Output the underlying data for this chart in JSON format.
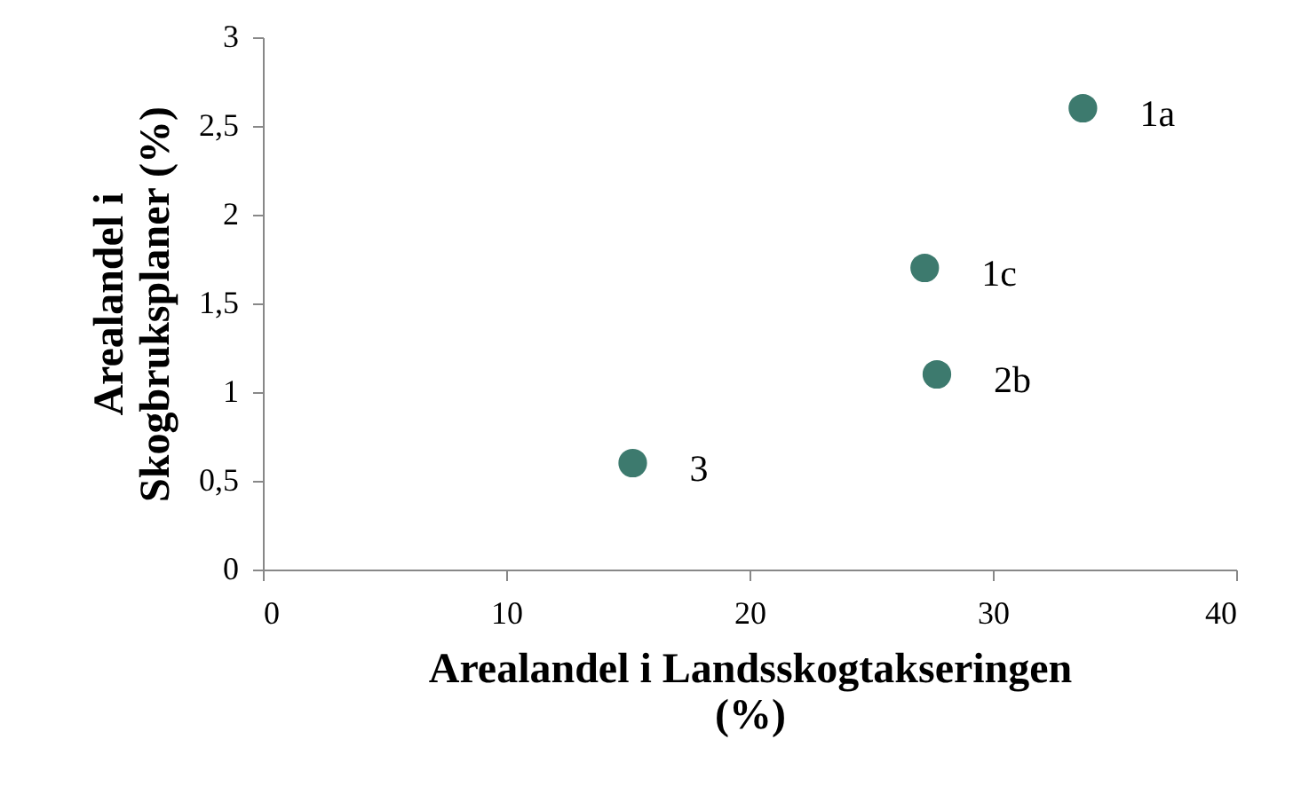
{
  "chart_data": {
    "type": "scatter",
    "xlabel": "Arealandel i Landsskogtakseringen (%)",
    "ylabel": "Arealandel i Skogbruksplaner (%)",
    "x": [
      33.7,
      27.2,
      27.7,
      15.2
    ],
    "series": [
      {
        "color": "#3d7a6e",
        "values": [
          2.6,
          1.7,
          1.1,
          0.6
        ]
      }
    ],
    "annotations": [
      {
        "text": "1a",
        "x": 33.7,
        "y": 2.6
      },
      {
        "text": "1c",
        "x": 27.2,
        "y": 1.7
      },
      {
        "text": "2b",
        "x": 27.7,
        "y": 1.1
      },
      {
        "text": "3",
        "x": 15.2,
        "y": 0.6
      }
    ],
    "xlim": [
      0,
      40
    ],
    "xticks": [
      0,
      10,
      20,
      30,
      40
    ],
    "ylim": [
      0,
      3
    ],
    "yticks": [
      0,
      {
        "value": 0.5,
        "label": "0,5"
      },
      1,
      {
        "value": 1.5,
        "label": "1,5"
      },
      2,
      {
        "value": 2.5,
        "label": "2,5"
      },
      3
    ],
    "grid": false,
    "marker": "circle"
  }
}
